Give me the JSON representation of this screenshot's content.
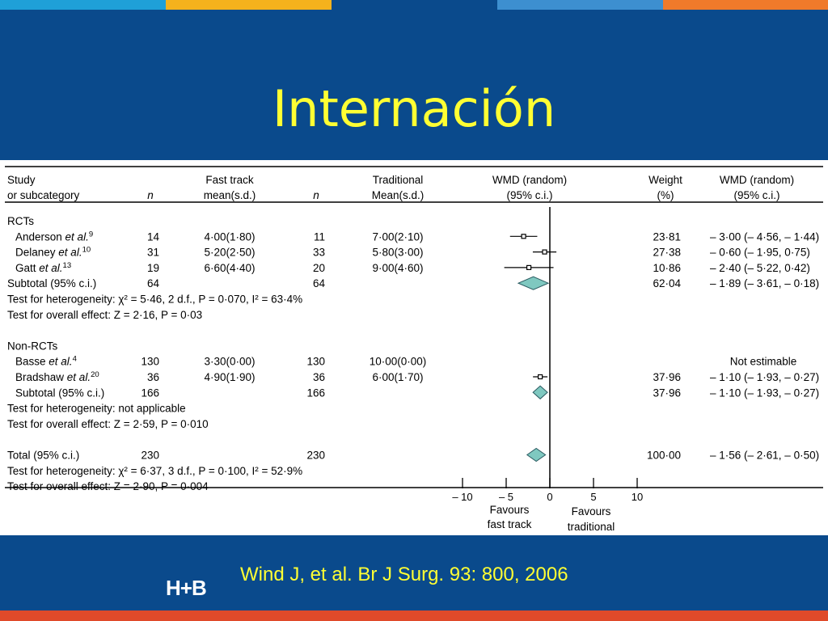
{
  "slide": {
    "title": "Internación",
    "citation": "Wind J, et al.  Br J Surg.  93: 800, 2006",
    "logo_text": "H+B",
    "colors": {
      "background": "#0a4a8c",
      "title": "#ffff33",
      "stripes": [
        "#1fa0d8",
        "#f5b21c",
        "#0a4a8c",
        "#3d8fd0",
        "#f07a2a"
      ],
      "bottom_bar": "#e04a2a",
      "diamond_fill": "#7fc8c0"
    }
  },
  "chart_data": {
    "type": "forest",
    "header": {
      "study": "Study",
      "subcategory": "or subcategory",
      "fast_track": "Fast track",
      "fast_n": "n",
      "fast_mean": "mean(s.d.)",
      "traditional": "Traditional",
      "trad_n": "n",
      "trad_mean": "Mean(s.d.)",
      "wmd": "WMD (random)",
      "wmd_ci": "(95% c.i.)",
      "weight": "Weight",
      "weight_unit": "(%)",
      "wmd2": "WMD (random)",
      "wmd2_ci": "(95% c.i.)"
    },
    "rows": [
      {
        "kind": "group",
        "label": "RCTs"
      },
      {
        "kind": "study",
        "label": "Anderson et al.",
        "ref": "9",
        "n1": "14",
        "m1": "4·00(1·80)",
        "n2": "11",
        "m2": "7·00(2·10)",
        "weight": "23·81",
        "ci_text": "– 3·00 (– 4·56, – 1·44)",
        "est": -3.0,
        "lo": -4.56,
        "hi": -1.44
      },
      {
        "kind": "study",
        "label": "Delaney et al.",
        "ref": "10",
        "n1": "31",
        "m1": "5·20(2·50)",
        "n2": "33",
        "m2": "5·80(3·00)",
        "weight": "27·38",
        "ci_text": "– 0·60 (– 1·95, 0·75)",
        "est": -0.6,
        "lo": -1.95,
        "hi": 0.75
      },
      {
        "kind": "study",
        "label": "Gatt et al.",
        "ref": "13",
        "n1": "19",
        "m1": "6·60(4·40)",
        "n2": "20",
        "m2": "9·00(4·60)",
        "weight": "10·86",
        "ci_text": "– 2·40 (– 5·22, 0·42)",
        "est": -2.4,
        "lo": -5.22,
        "hi": 0.42
      },
      {
        "kind": "subtotal",
        "label": "Subtotal (95% c.i.)",
        "n1": "64",
        "n2": "64",
        "weight": "62·04",
        "ci_text": "– 1·89 (– 3·61, – 0·18)",
        "est": -1.89,
        "lo": -3.61,
        "hi": -0.18
      },
      {
        "kind": "text",
        "label": "Test for heterogeneity:  χ² = 5·46, 2 d.f., P = 0·070, I² = 63·4%"
      },
      {
        "kind": "text",
        "label": "Test for overall effect: Z = 2·16, P = 0·03"
      },
      {
        "kind": "blank"
      },
      {
        "kind": "group",
        "label": "Non-RCTs"
      },
      {
        "kind": "study",
        "label": "Basse et al.",
        "ref": "4",
        "n1": "130",
        "m1": "3·30(0·00)",
        "n2": "130",
        "m2": "10·00(0·00)",
        "weight": "",
        "ci_text": "Not estimable"
      },
      {
        "kind": "study",
        "label": "Bradshaw et al.",
        "ref": "20",
        "n1": "36",
        "m1": "4·90(1·90)",
        "n2": "36",
        "m2": "6·00(1·70)",
        "weight": "37·96",
        "ci_text": "– 1·10 (– 1·93, – 0·27)",
        "est": -1.1,
        "lo": -1.93,
        "hi": -0.27
      },
      {
        "kind": "subtotal",
        "label": "Subtotal (95% c.i.)",
        "n1": "166",
        "n2": "166",
        "weight": "37·96",
        "ci_text": "– 1·10 (– 1·93, – 0·27)",
        "est": -1.1,
        "lo": -1.93,
        "hi": -0.27
      },
      {
        "kind": "text",
        "label": "Test for heterogeneity: not applicable"
      },
      {
        "kind": "text",
        "label": "Test for overall effect: Z = 2·59, P = 0·010"
      },
      {
        "kind": "blank"
      },
      {
        "kind": "total",
        "label": "Total (95% c.i.)",
        "n1": "230",
        "n2": "230",
        "weight": "100·00",
        "ci_text": "– 1·56 (– 2·61, – 0·50)",
        "est": -1.56,
        "lo": -2.61,
        "hi": -0.5
      },
      {
        "kind": "text",
        "label": "Test for heterogeneity:  χ² = 6·37, 3 d.f., P = 0·100, I² = 52·9%"
      },
      {
        "kind": "text",
        "label": "Test for overall effect: Z = 2·90, P = 0·004"
      }
    ],
    "x_ticks": [
      {
        "value": -10,
        "label": "– 10"
      },
      {
        "value": -5,
        "label": "– 5"
      },
      {
        "value": 0,
        "label": "0"
      },
      {
        "value": 5,
        "label": "5"
      },
      {
        "value": 10,
        "label": "10"
      }
    ],
    "xlim": [
      -10,
      10
    ],
    "favours_left": [
      "Favours",
      "fast track"
    ],
    "favours_right": [
      "Favours",
      "traditional"
    ]
  }
}
